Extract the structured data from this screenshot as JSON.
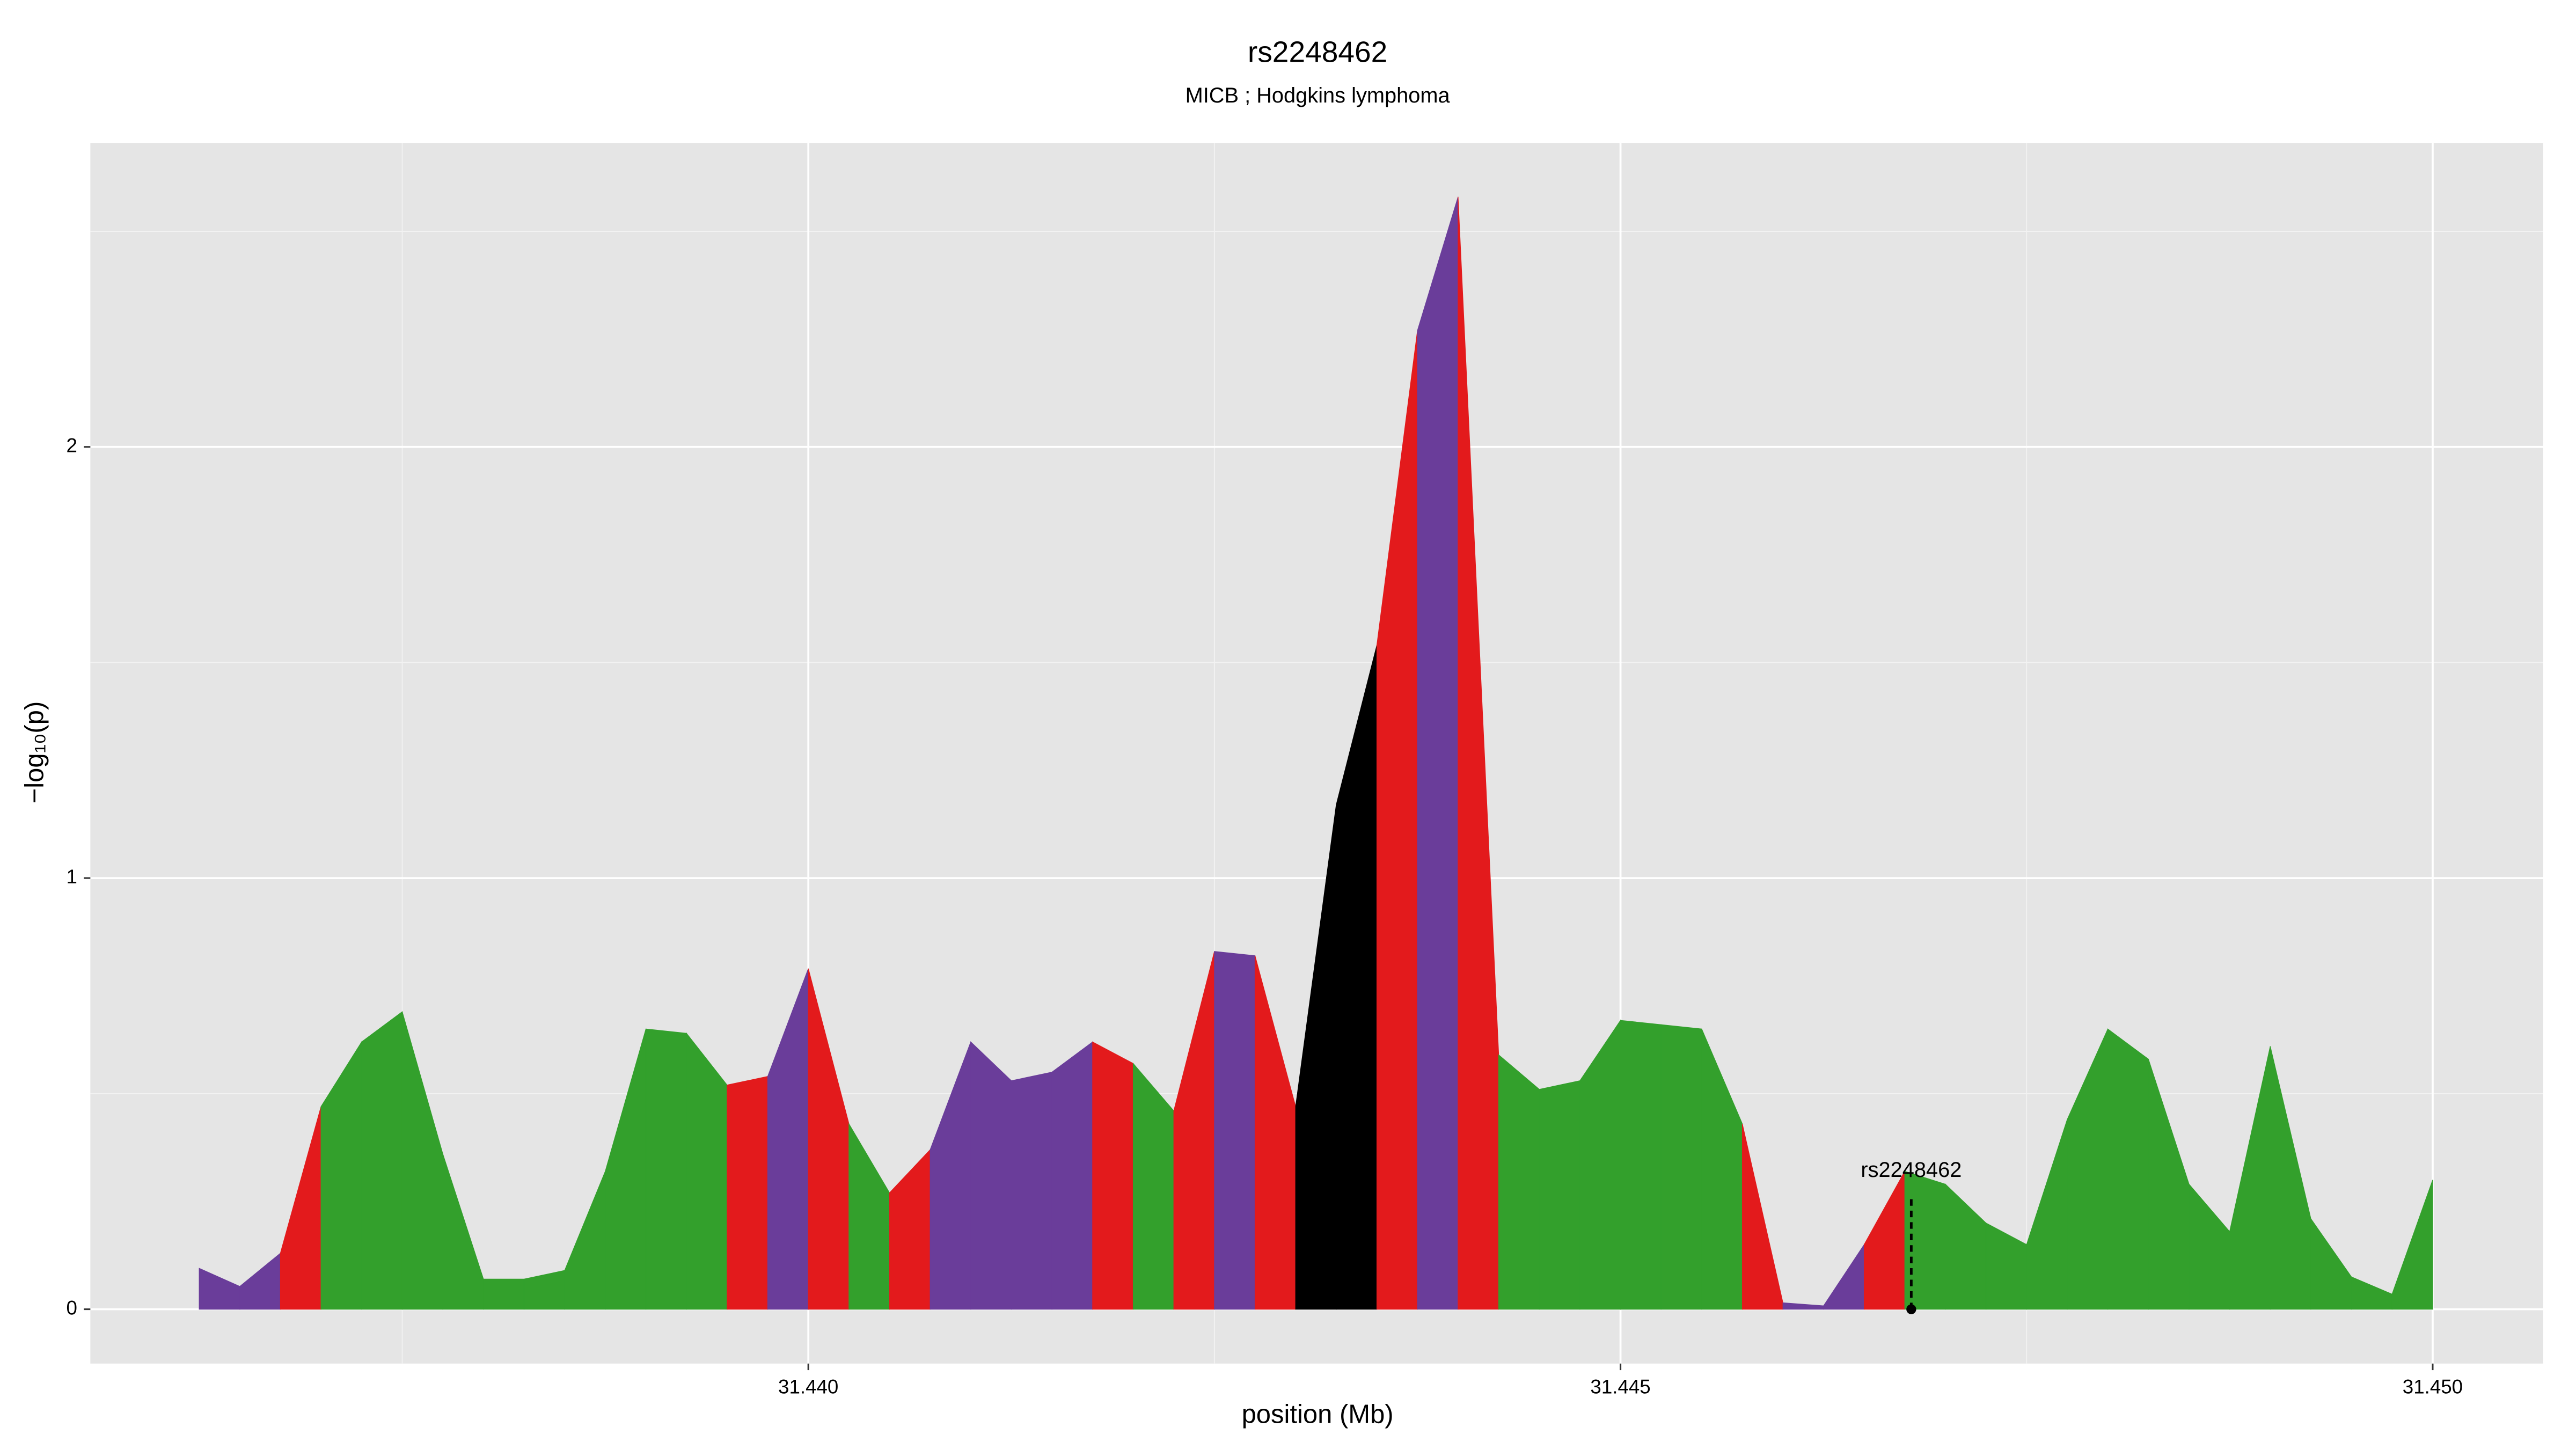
{
  "chart_data": {
    "type": "area",
    "title": "rs2248462",
    "subtitle": "MICB ; Hodgkins lymphoma",
    "xlabel": "position (Mb)",
    "ylabel": "−log₁₀(p)",
    "x": [
      31.43625,
      31.4365,
      31.43675,
      31.437,
      31.43725,
      31.4375,
      31.43775,
      31.438,
      31.43825,
      31.4385,
      31.43875,
      31.439,
      31.43925,
      31.4395,
      31.43975,
      31.44,
      31.44025,
      31.4405,
      31.44075,
      31.441,
      31.44125,
      31.4415,
      31.44175,
      31.442,
      31.44225,
      31.4425,
      31.44275,
      31.443,
      31.44325,
      31.4435,
      31.44375,
      31.444,
      31.44425,
      31.4445,
      31.44475,
      31.445,
      31.44525,
      31.4455,
      31.44575,
      31.446,
      31.44625,
      31.4465,
      31.44675,
      31.447,
      31.44725,
      31.4475,
      31.44775,
      31.448,
      31.44825,
      31.4485,
      31.44875,
      31.449,
      31.44925,
      31.4495,
      31.44975,
      31.45
    ],
    "values": [
      0.095,
      0.053,
      0.13,
      0.47,
      0.62,
      0.69,
      0.36,
      0.07,
      0.07,
      0.09,
      0.32,
      0.65,
      0.64,
      0.52,
      0.54,
      0.79,
      0.43,
      0.27,
      0.37,
      0.62,
      0.53,
      0.55,
      0.62,
      0.57,
      0.46,
      0.83,
      0.82,
      0.47,
      1.17,
      1.54,
      2.27,
      2.58,
      0.59,
      0.51,
      0.53,
      0.67,
      0.66,
      0.65,
      0.43,
      0.015,
      0.008,
      0.15,
      0.32,
      0.29,
      0.2,
      0.15,
      0.44,
      0.65,
      0.58,
      0.29,
      0.18,
      0.61,
      0.21,
      0.075,
      0.035,
      0.3
    ],
    "segment_colors": [
      "#6a3d9a",
      "#6a3d9a",
      "#e31a1c",
      "#33a02c",
      "#33a02c",
      "#33a02c",
      "#33a02c",
      "#33a02c",
      "#33a02c",
      "#33a02c",
      "#33a02c",
      "#33a02c",
      "#33a02c",
      "#e31a1c",
      "#6a3d9a",
      "#e31a1c",
      "#33a02c",
      "#e31a1c",
      "#6a3d9a",
      "#6a3d9a",
      "#6a3d9a",
      "#6a3d9a",
      "#e31a1c",
      "#33a02c",
      "#e31a1c",
      "#6a3d9a",
      "#e31a1c",
      "#000000",
      "#000000",
      "#e31a1c",
      "#6a3d9a",
      "#e31a1c",
      "#33a02c",
      "#33a02c",
      "#33a02c",
      "#33a02c",
      "#33a02c",
      "#33a02c",
      "#e31a1c",
      "#6a3d9a",
      "#6a3d9a",
      "#e31a1c",
      "#33a02c",
      "#33a02c",
      "#33a02c",
      "#33a02c",
      "#33a02c",
      "#33a02c",
      "#33a02c",
      "#33a02c",
      "#33a02c",
      "#33a02c",
      "#33a02c",
      "#33a02c",
      "#33a02c"
    ],
    "xlim": [
      31.43558,
      31.45068
    ],
    "ylim": [
      -0.126,
      2.705
    ],
    "xticks": [
      {
        "value": 31.44,
        "label": "31.440"
      },
      31.445,
      {
        "value": 31.45,
        "label": "31.450"
      }
    ],
    "yticks": [
      0,
      1,
      2
    ],
    "grid": true,
    "annotation": {
      "text": "rs2248462",
      "x": 31.44679
    }
  }
}
